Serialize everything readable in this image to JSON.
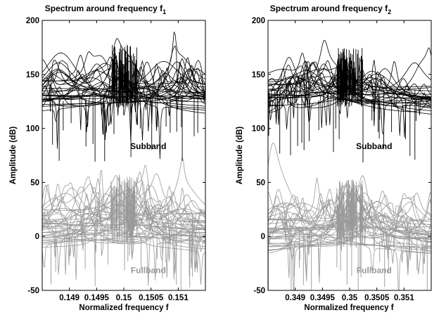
{
  "chart_data": [
    {
      "type": "line",
      "title": "Spectrum around frequency f",
      "title_subscript": "1",
      "xlabel": "Normalized frequency f",
      "ylabel": "Amplitude (dB)",
      "xlim": [
        0.1485,
        0.1515
      ],
      "ylim": [
        -50,
        200
      ],
      "xticks": [
        0.149,
        0.1495,
        0.15,
        0.1505,
        0.151
      ],
      "xtick_labels": [
        "0.149",
        "0.1495",
        "0.15",
        "0.1505",
        "0.151"
      ],
      "yticks": [
        -50,
        0,
        50,
        100,
        150,
        200
      ],
      "ytick_labels": [
        "-50",
        "0",
        "50",
        "100",
        "150",
        "200"
      ],
      "center": 0.15,
      "annotations": [
        {
          "text": "Subband",
          "x": 0.15045,
          "y": 81,
          "color": "#000000"
        },
        {
          "text": "Fullband",
          "x": 0.15045,
          "y": -34,
          "color": "#999999"
        }
      ],
      "series": [
        {
          "group": "Subband",
          "color": "#000000",
          "baseline": 128,
          "peak": 158,
          "spread": 18,
          "count": 32
        },
        {
          "group": "Fullband",
          "color": "#999999",
          "baseline": 5,
          "peak": 38,
          "spread": 24,
          "count": 40
        }
      ]
    },
    {
      "type": "line",
      "title": "Spectrum around frequency f",
      "title_subscript": "2",
      "xlabel": "Normalized frequency f",
      "ylabel": "Amplitude (dB)",
      "xlim": [
        0.3485,
        0.3515
      ],
      "ylim": [
        -50,
        200
      ],
      "xticks": [
        0.349,
        0.3495,
        0.35,
        0.3505,
        0.351
      ],
      "xtick_labels": [
        "0.349",
        "0.3495",
        "0.35",
        "0.3505",
        "0.351"
      ],
      "yticks": [
        -50,
        0,
        50,
        100,
        150,
        200
      ],
      "ytick_labels": [
        "-50",
        "0",
        "50",
        "100",
        "150",
        "200"
      ],
      "center": 0.35,
      "annotations": [
        {
          "text": "Subband",
          "x": 0.35045,
          "y": 81,
          "color": "#000000"
        },
        {
          "text": "Fullband",
          "x": 0.35045,
          "y": -34,
          "color": "#999999"
        }
      ],
      "series": [
        {
          "group": "Subband",
          "color": "#000000",
          "baseline": 128,
          "peak": 155,
          "spread": 16,
          "count": 30
        },
        {
          "group": "Fullband",
          "color": "#999999",
          "baseline": 0,
          "peak": 33,
          "spread": 22,
          "count": 40
        }
      ]
    }
  ]
}
